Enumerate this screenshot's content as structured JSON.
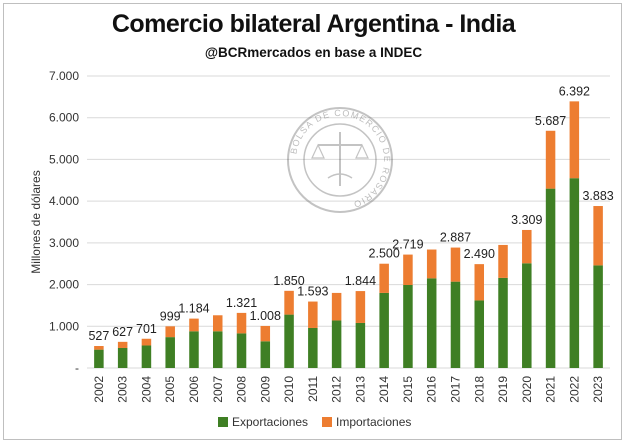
{
  "header": {
    "title": "Comercio bilateral Argentina - India",
    "subtitle": "@BCRmercados en base a INDEC"
  },
  "watermark": {
    "icon": "bolsa-de-comercio-de-rosario-seal-icon",
    "text": "BOLSA DE COMERCIO DE ROSARIO"
  },
  "colors": {
    "exportaciones": "#3f7f24",
    "importaciones": "#ed7d31"
  },
  "chart_data": {
    "type": "bar",
    "stacked": true,
    "title": "Comercio bilateral Argentina - India",
    "subtitle": "@BCRmercados en base a INDEC",
    "ylabel": "Millones de dólares",
    "xlabel": "",
    "ylim": [
      0,
      7000
    ],
    "yticks": [
      0,
      1000,
      2000,
      3000,
      4000,
      5000,
      6000,
      7000
    ],
    "ytick_labels": [
      "-",
      "1.000",
      "2.000",
      "3.000",
      "4.000",
      "5.000",
      "6.000",
      "7.000"
    ],
    "grid": true,
    "legend": "bottom",
    "categories": [
      "2002",
      "2003",
      "2004",
      "2005",
      "2006",
      "2007",
      "2008",
      "2009",
      "2010",
      "2011",
      "2012",
      "2013",
      "2014",
      "2015",
      "2016",
      "2017",
      "2018",
      "2019",
      "2020",
      "2021",
      "2022",
      "2023"
    ],
    "series": [
      {
        "name": "Exportaciones",
        "values": [
          440,
          480,
          540,
          740,
          880,
          880,
          830,
          640,
          1280,
          960,
          1140,
          1080,
          1800,
          1990,
          2150,
          2070,
          1620,
          2160,
          2510,
          4300,
          4550,
          2460
        ]
      },
      {
        "name": "Importaciones",
        "values": [
          87,
          147,
          161,
          259,
          304,
          384,
          491,
          368,
          570,
          633,
          660,
          764,
          700,
          729,
          690,
          817,
          870,
          790,
          799,
          1387,
          1842,
          1423
        ]
      }
    ],
    "totals": [
      527,
      627,
      701,
      999,
      1184,
      1267,
      1321,
      1008,
      1850,
      1593,
      1800,
      1844,
      2500,
      2719,
      2840,
      2887,
      2490,
      2950,
      3309,
      5687,
      6392,
      3883
    ],
    "data_labels": [
      "527",
      "627",
      "701",
      "999",
      "1.184",
      "",
      "1.321",
      "1.008",
      "1.850",
      "1.593",
      "",
      "1.844",
      "2.500",
      "2.719",
      "",
      "2.887",
      "2.490",
      "",
      "3.309",
      "5.687",
      "6.392",
      "3.883"
    ]
  }
}
